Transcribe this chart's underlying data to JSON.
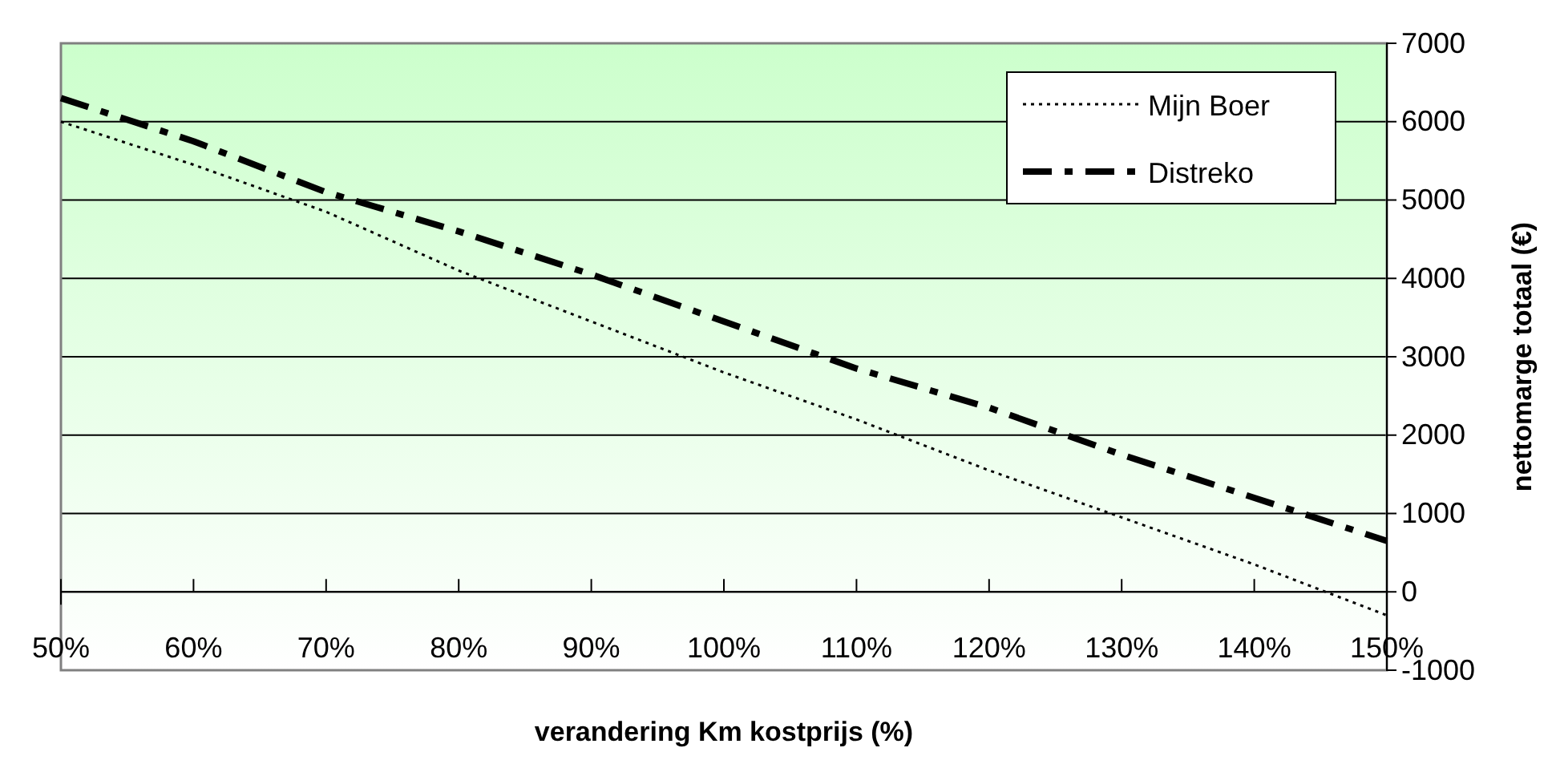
{
  "chart_data": {
    "type": "line",
    "xlabel": "verandering Km kostprijs (%)",
    "ylabel": "nettomarge totaal (€)",
    "x": [
      50,
      60,
      70,
      80,
      90,
      100,
      110,
      120,
      130,
      140,
      150
    ],
    "xlim": [
      50,
      150
    ],
    "xticks": [
      {
        "value": 50,
        "label": "50%"
      },
      {
        "value": 60,
        "label": "60%"
      },
      {
        "value": 70,
        "label": "70%"
      },
      {
        "value": 80,
        "label": "80%"
      },
      {
        "value": 90,
        "label": "90%"
      },
      {
        "value": 100,
        "label": "100%"
      },
      {
        "value": 110,
        "label": "110%"
      },
      {
        "value": 120,
        "label": "120%"
      },
      {
        "value": 130,
        "label": "130%"
      },
      {
        "value": 140,
        "label": "140%"
      },
      {
        "value": 150,
        "label": "150%"
      }
    ],
    "ylim": [
      -1000,
      7000
    ],
    "yticks": [
      -1000,
      0,
      1000,
      2000,
      3000,
      4000,
      5000,
      6000,
      7000
    ],
    "grid": "y",
    "legend": "top right",
    "marker": "none",
    "series": [
      {
        "name": "Mijn Boer",
        "color": "#000000",
        "line_style": "dotted",
        "values": [
          6000,
          5450,
          4850,
          4100,
          3450,
          2800,
          2200,
          1550,
          950,
          350,
          -300
        ]
      },
      {
        "name": "Distreko",
        "color": "#000000",
        "line_style": "dashed",
        "values": [
          6300,
          5750,
          5100,
          4600,
          4050,
          3450,
          2850,
          2350,
          1750,
          1200,
          650
        ]
      }
    ]
  }
}
